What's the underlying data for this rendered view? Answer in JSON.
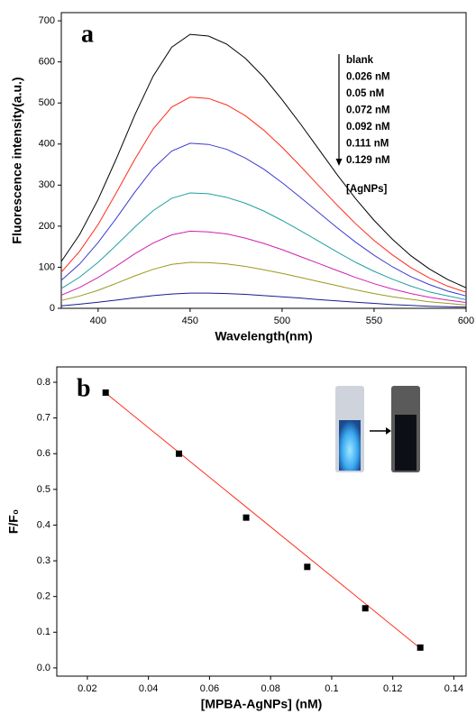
{
  "chart_data": [
    {
      "type": "line",
      "panel": "a",
      "xlabel": "Wavelength(nm)",
      "ylabel": "Fluorescence intensity(a.u.)",
      "x": [
        380,
        390,
        400,
        410,
        420,
        430,
        440,
        450,
        460,
        470,
        480,
        490,
        500,
        510,
        520,
        530,
        540,
        550,
        560,
        570,
        580,
        590,
        600
      ],
      "xlim": [
        380,
        600
      ],
      "xticks": [
        400,
        450,
        500,
        550,
        600
      ],
      "ylim": [
        0,
        720
      ],
      "yticks": [
        0,
        100,
        200,
        300,
        400,
        500,
        600,
        700
      ],
      "series": [
        {
          "name": "blank",
          "color": "#000000",
          "values": [
            114,
            180,
            265,
            365,
            471,
            566,
            636,
            667,
            663,
            643,
            609,
            563,
            508,
            449,
            387,
            325,
            267,
            214,
            168,
            128,
            96,
            70,
            50
          ]
        },
        {
          "name": "0.026 nM",
          "color": "#ff2a1a",
          "values": [
            88,
            139,
            204,
            282,
            363,
            437,
            490,
            514,
            511,
            495,
            469,
            434,
            392,
            346,
            298,
            251,
            206,
            165,
            130,
            99,
            74,
            54,
            39
          ]
        },
        {
          "name": "0.05 nM",
          "color": "#3b3bd0",
          "values": [
            68,
            108,
            160,
            220,
            283,
            341,
            383,
            402,
            399,
            387,
            366,
            339,
            306,
            270,
            233,
            196,
            161,
            129,
            101,
            77,
            58,
            42,
            30
          ]
        },
        {
          "name": "0.072 nM",
          "color": "#21a0a0",
          "values": [
            48,
            76,
            112,
            154,
            198,
            238,
            268,
            281,
            279,
            270,
            256,
            237,
            214,
            189,
            163,
            137,
            112,
            90,
            71,
            54,
            40,
            30,
            21
          ]
        },
        {
          "name": "0.092 nM",
          "color": "#d020b0",
          "values": [
            32,
            51,
            75,
            103,
            133,
            159,
            179,
            188,
            186,
            181,
            171,
            158,
            143,
            126,
            109,
            92,
            75,
            60,
            47,
            36,
            27,
            20,
            14
          ]
        },
        {
          "name": "0.111 nM",
          "color": "#9a9a20",
          "values": [
            19,
            30,
            44,
            61,
            79,
            95,
            107,
            112,
            111,
            108,
            102,
            94,
            85,
            75,
            65,
            55,
            45,
            36,
            28,
            22,
            16,
            12,
            8
          ]
        },
        {
          "name": "0.129 nM",
          "color": "#1a1a90",
          "values": [
            6,
            10,
            15,
            20,
            26,
            31,
            35,
            37,
            37,
            36,
            34,
            31,
            28,
            25,
            21,
            18,
            15,
            12,
            9,
            7,
            5,
            4,
            3
          ]
        }
      ],
      "annotation": "[AgNPs]"
    },
    {
      "type": "scatter",
      "panel": "b",
      "xlabel": "[MPBA-AgNPs] (nM)",
      "ylabel": "F/F₀",
      "x": [
        0.026,
        0.05,
        0.072,
        0.092,
        0.111,
        0.129
      ],
      "values": [
        0.771,
        0.6,
        0.421,
        0.283,
        0.167,
        0.057
      ],
      "color": "#000000",
      "fit": {
        "x": [
          0.026,
          0.129
        ],
        "y": [
          0.77,
          0.055
        ],
        "color": "#ff3020"
      },
      "xlim": [
        0.01,
        0.144
      ],
      "xticks": [
        0.02,
        0.04,
        0.06,
        0.08,
        0.1,
        0.12,
        0.14
      ],
      "ylim": [
        -0.023,
        0.843
      ],
      "yticks": [
        {
          "value": 0,
          "label": "0.0"
        },
        0.1,
        0.2,
        0.3,
        0.4,
        0.5,
        0.6,
        0.7,
        0.8
      ]
    }
  ]
}
